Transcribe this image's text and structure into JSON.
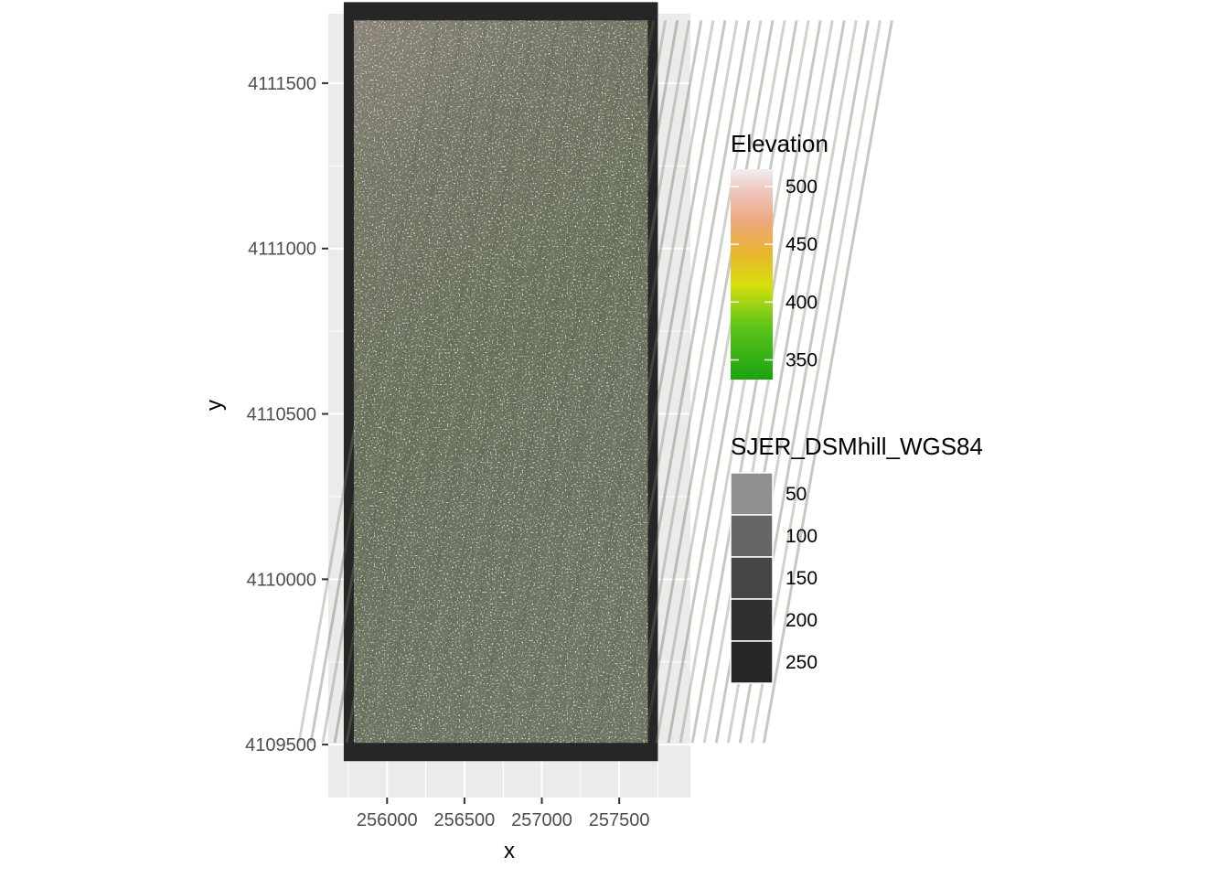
{
  "chart_data": {
    "type": "heatmap",
    "title": "",
    "xlabel": "x",
    "ylabel": "y",
    "xlim": [
      255620,
      257960
    ],
    "ylim": [
      4109340,
      4111710
    ],
    "x_ticks": [
      256000,
      256500,
      257000,
      257500
    ],
    "x_tick_labels": [
      "256000",
      "256500",
      "257000",
      "257500"
    ],
    "y_ticks": [
      4109500,
      4110000,
      4110500,
      4111000,
      4111500
    ],
    "y_tick_labels": [
      "4109500",
      "4110000",
      "4110500",
      "4111000",
      "4111500"
    ],
    "grid": true,
    "raster_extent": {
      "xmin": 255720,
      "xmax": 257750,
      "ymin": 4109450,
      "ymax": 4111745
    },
    "legends": [
      {
        "title": "Elevation",
        "type": "colorbar",
        "breaks": [
          500,
          450,
          400,
          350
        ],
        "labels": [
          "500",
          "450",
          "400",
          "350"
        ],
        "range": [
          333,
          515
        ],
        "colors": [
          "#1aa30f",
          "#58c41a",
          "#d8e00d",
          "#e8b33a",
          "#f0b8b0",
          "#efefef"
        ]
      },
      {
        "title": "SJER_DSMhill_WGS84",
        "type": "discrete",
        "labels": [
          "50",
          "100",
          "150",
          "200",
          "250"
        ],
        "colors": [
          "#8f8f8f",
          "#666666",
          "#454545",
          "#303030",
          "#262626"
        ]
      }
    ],
    "legend_position": "right"
  }
}
